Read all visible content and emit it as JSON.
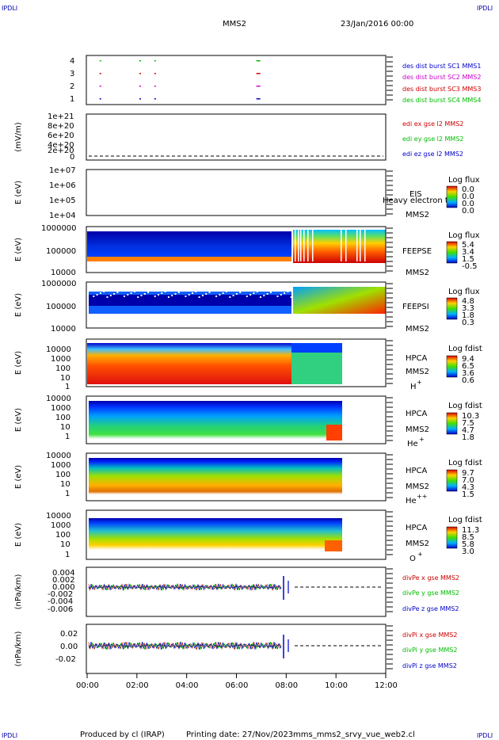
{
  "corner": {
    "left": "IPDLI",
    "right": "IPDLI"
  },
  "header": {
    "mission": "MMS2",
    "date": "23/Jan/2016 00:00"
  },
  "footer": {
    "producer": "Produced by cl (IRAP)",
    "printing": "Printing date: 27/Nov/2023",
    "script": "mms_mms2_srvy_vue_web2.cl"
  },
  "chart_data": [
    {
      "type": "scatter",
      "name": "burst",
      "yticks": [
        "4",
        "3",
        "2",
        "1"
      ],
      "legend": [
        {
          "label": "des dist burst SC1 MMS1",
          "color": "#0000cc"
        },
        {
          "label": "des dist burst SC2 MMS2",
          "color": "#cc00cc"
        },
        {
          "label": "des dist burst SC3 MMS3",
          "color": "#cc0000"
        },
        {
          "label": "des dist burst SC4 MMS4",
          "color": "#00bb00"
        }
      ],
      "series": [
        {
          "level": 4,
          "times": [
            0.5,
            2.1,
            2.7,
            6.8
          ]
        },
        {
          "level": 3,
          "times": [
            0.5,
            2.1,
            2.7,
            6.8
          ]
        },
        {
          "level": 2,
          "times": [
            0.5,
            2.1,
            2.7,
            6.8
          ]
        },
        {
          "level": 1,
          "times": [
            0.5,
            2.1,
            2.7,
            6.8
          ]
        }
      ]
    },
    {
      "type": "line",
      "name": "edi",
      "ylabel": "(mV/m)",
      "yticks": [
        "1e+21",
        "8e+20",
        "6e+20",
        "4e+20",
        "2e+20",
        "0"
      ],
      "legend": [
        {
          "label": "edi ex gse l2 MMS2",
          "color": "#cc0000"
        },
        {
          "label": "edi ey gse l2 MMS2",
          "color": "#00bb00"
        },
        {
          "label": "edi ez gse l2 MMS2",
          "color": "#0000cc"
        }
      ]
    },
    {
      "type": "heatmap",
      "name": "eis",
      "ylabel": "E (eV)",
      "yticks": [
        "1e+07",
        "1e+06",
        "1e+05",
        "1e+04"
      ],
      "labels": [
        "EIS",
        "MMS2"
      ],
      "overlay": "Heavy electron tof",
      "cbar_title": "Log flux",
      "cbar_ticks": [
        "0.0",
        "0.0",
        "0.0",
        "0.0"
      ]
    },
    {
      "type": "heatmap",
      "name": "feepse",
      "ylabel": "E (eV)",
      "yticks": [
        "1000000",
        "100000",
        "10000"
      ],
      "labels": [
        "FEEPSE",
        "MMS2"
      ],
      "cbar_title": "Log flux",
      "cbar_ticks": [
        "5.4",
        "3.4",
        "1.5",
        "-0.5"
      ]
    },
    {
      "type": "heatmap",
      "name": "feepsi",
      "ylabel": "E (eV)",
      "yticks": [
        "1000000",
        "100000",
        "10000"
      ],
      "labels": [
        "FEEPSI",
        "MMS2"
      ],
      "cbar_title": "Log flux",
      "cbar_ticks": [
        "4.8",
        "3.3",
        "1.8",
        "0.3"
      ]
    },
    {
      "type": "heatmap",
      "name": "hpca-h",
      "ylabel": "E (eV)",
      "yticks": [
        "10000",
        "1000",
        "100",
        "10",
        "1"
      ],
      "labels": [
        "HPCA",
        "MMS2"
      ],
      "species": "H",
      "charge": "+",
      "cbar_title": "Log fdist",
      "cbar_ticks": [
        "9.4",
        "6.5",
        "3.6",
        "0.6"
      ]
    },
    {
      "type": "heatmap",
      "name": "hpca-he",
      "ylabel": "E (eV)",
      "yticks": [
        "10000",
        "1000",
        "100",
        "10",
        "1"
      ],
      "labels": [
        "HPCA",
        "MMS2"
      ],
      "species": "He",
      "charge": "+",
      "cbar_title": "Log fdist",
      "cbar_ticks": [
        "10.3",
        "7.5",
        "4.7",
        "1.8"
      ]
    },
    {
      "type": "heatmap",
      "name": "hpca-hepp",
      "ylabel": "E (eV)",
      "yticks": [
        "10000",
        "1000",
        "100",
        "10",
        "1"
      ],
      "labels": [
        "HPCA",
        "MMS2"
      ],
      "species": "He",
      "charge": "++",
      "cbar_title": "Log fdist",
      "cbar_ticks": [
        "9.7",
        "7.0",
        "4.3",
        "1.5"
      ]
    },
    {
      "type": "heatmap",
      "name": "hpca-o",
      "ylabel": "E (eV)",
      "yticks": [
        "10000",
        "1000",
        "100",
        "10",
        "1"
      ],
      "labels": [
        "HPCA",
        "MMS2"
      ],
      "species": "O",
      "charge": "+",
      "cbar_title": "Log fdist",
      "cbar_ticks": [
        "11.3",
        "8.5",
        "5.8",
        "3.0"
      ]
    },
    {
      "type": "line",
      "name": "divpe",
      "ylabel": "(nPa/km)",
      "yticks": [
        "0.004",
        "0.002",
        "0.000",
        "-0.002",
        "-0.004",
        "-0.006"
      ],
      "legend": [
        {
          "label": "divPe x gse MMS2",
          "color": "#cc0000"
        },
        {
          "label": "divPe y gse MMS2",
          "color": "#00bb00"
        },
        {
          "label": "divPe z gse MMS2",
          "color": "#0000cc"
        }
      ]
    },
    {
      "type": "line",
      "name": "divpi",
      "ylabel": "(nPa/km)",
      "yticks": [
        "0.02",
        "0.00",
        "-0.02"
      ],
      "legend": [
        {
          "label": "divPi x gse MMS2",
          "color": "#cc0000"
        },
        {
          "label": "divPi y gse MMS2",
          "color": "#00bb00"
        },
        {
          "label": "divPi z gse MMS2",
          "color": "#0000cc"
        }
      ]
    }
  ],
  "xaxis": {
    "ticks": [
      "00:00",
      "02:00",
      "04:00",
      "06:00",
      "08:00",
      "10:00",
      "12:00"
    ],
    "range_hours": [
      0,
      12
    ]
  }
}
